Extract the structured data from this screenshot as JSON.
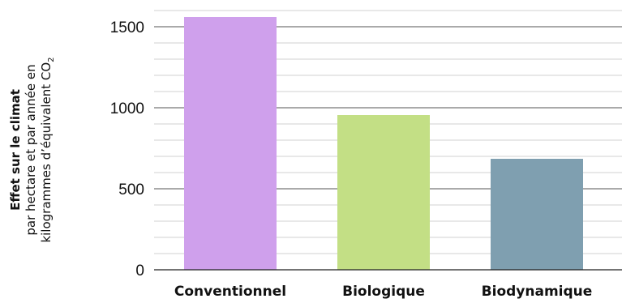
{
  "chart_data": {
    "type": "bar",
    "categories": [
      "Conventionnel",
      "Biologique",
      "Biodynamique"
    ],
    "values": [
      1560,
      955,
      685
    ],
    "colors": [
      "#cfa0ec",
      "#c3df85",
      "#7f9fb0"
    ],
    "ylabel": {
      "line1": "Effet sur le climat",
      "line2": "par hectare et par année en",
      "line3_prefix": "kilogrammes d’équivalent CO",
      "line3_subscript": "2"
    },
    "ylim": [
      0,
      1600
    ],
    "yticks": [
      0,
      500,
      1000,
      1500
    ],
    "minor_gridlines": true
  }
}
